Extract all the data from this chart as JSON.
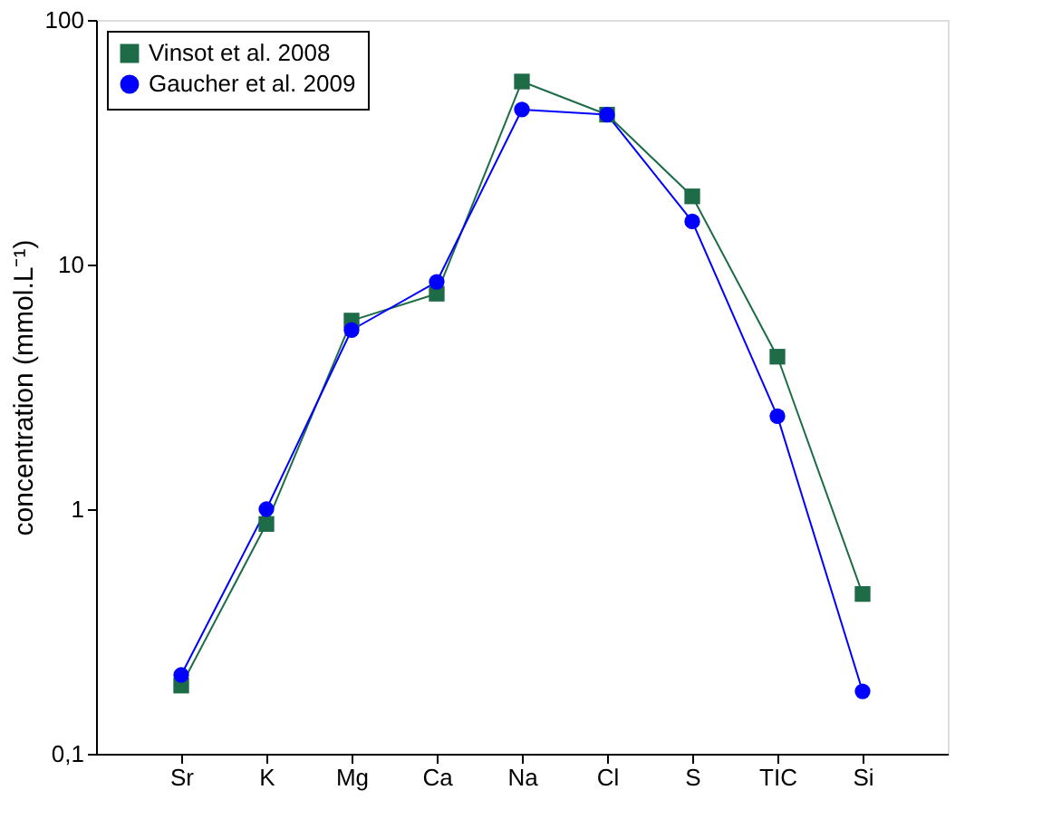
{
  "chart_data": {
    "type": "line",
    "ylabel": "concentration (mmol.L⁻¹)",
    "categories": [
      "Sr",
      "K",
      "Mg",
      "Ca",
      "Na",
      "Cl",
      "S",
      "TIC",
      "Si"
    ],
    "series": [
      {
        "name": "Vinsot et al. 2008",
        "color": "#1e6b48",
        "marker": "square",
        "values": [
          0.19,
          0.87,
          5.9,
          7.6,
          56,
          41,
          19,
          4.2,
          0.45
        ]
      },
      {
        "name": "Gaucher et al. 2009",
        "color": "#0000ff",
        "marker": "circle",
        "values": [
          0.21,
          1.0,
          5.4,
          8.5,
          43,
          41,
          15,
          2.4,
          0.18
        ]
      }
    ],
    "log": "y",
    "ylim": [
      0.1,
      100
    ],
    "yticks": [
      {
        "value": 0.1,
        "label": "0,1"
      },
      1,
      10,
      100
    ],
    "grid": false,
    "legend": "top left",
    "line_style": "solid"
  }
}
